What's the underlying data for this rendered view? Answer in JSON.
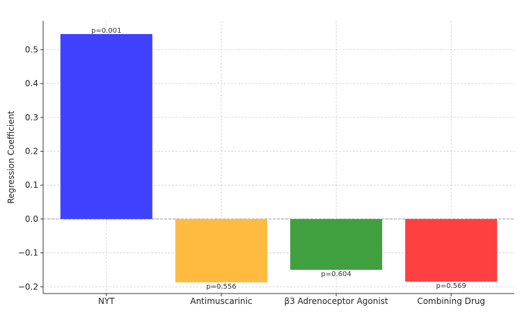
{
  "chart_data": {
    "type": "bar",
    "title": "",
    "xlabel": "",
    "ylabel": "Regression Coefficient",
    "ylim": [
      -0.22,
      0.585
    ],
    "yticks": [
      -0.2,
      -0.1,
      0.0,
      0.1,
      0.2,
      0.3,
      0.4,
      0.5
    ],
    "ytick_labels": [
      "−0.2",
      "−0.1",
      "0.0",
      "0.1",
      "0.2",
      "0.3",
      "0.4",
      "0.5"
    ],
    "grid": true,
    "categories": [
      "NYT",
      "Antimuscarinic",
      "β3 Adrenoceptor Agonist",
      "Combining Drug"
    ],
    "values": [
      0.546,
      -0.187,
      -0.15,
      -0.185
    ],
    "colors": [
      "#4040ff",
      "#ffbb40",
      "#40a040",
      "#ff4040"
    ],
    "annotations": [
      "p=0.001",
      "p=0.556",
      "p=0.604",
      "p=0.569"
    ],
    "zero_line": true
  }
}
